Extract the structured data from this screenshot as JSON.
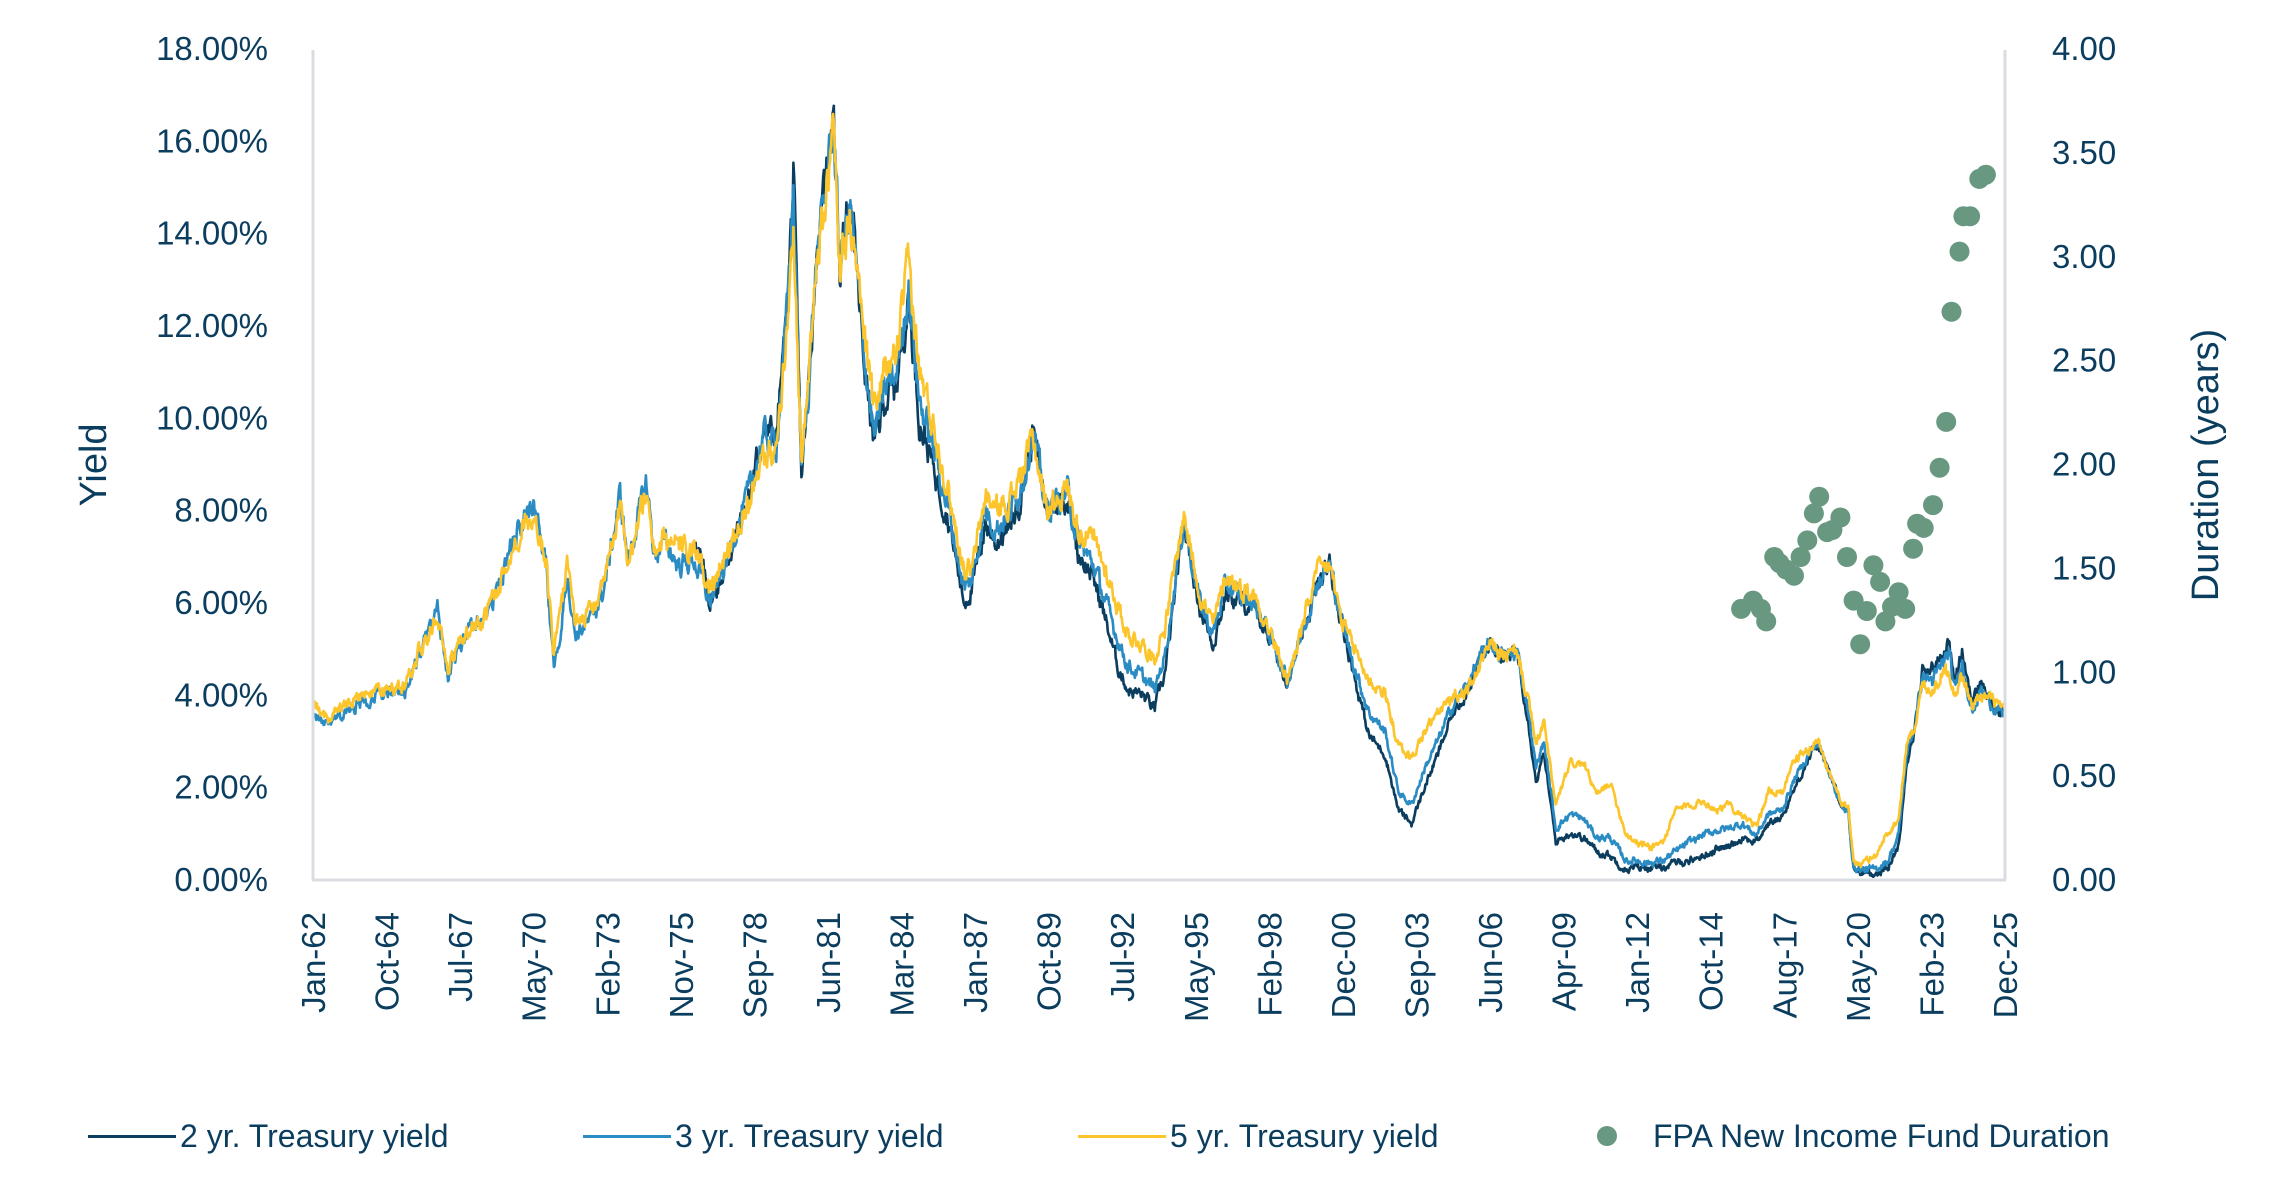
{
  "chart_data": {
    "type": "line",
    "title": "",
    "ylabel": "Yield",
    "y2label": "Duration (years)",
    "xlabel": "",
    "ylim": [
      0,
      18
    ],
    "y2lim": [
      0,
      4
    ],
    "xlim": [
      1962.0,
      2025.92
    ],
    "y_ticks": [
      "0.00%",
      "2.00%",
      "4.00%",
      "6.00%",
      "8.00%",
      "10.00%",
      "12.00%",
      "14.00%",
      "16.00%",
      "18.00%"
    ],
    "y_tick_values": [
      0,
      2,
      4,
      6,
      8,
      10,
      12,
      14,
      16,
      18
    ],
    "y2_ticks": [
      "0.00",
      "0.50",
      "1.00",
      "1.50",
      "2.00",
      "2.50",
      "3.00",
      "3.50",
      "4.00"
    ],
    "y2_tick_values": [
      0,
      0.5,
      1,
      1.5,
      2,
      2.5,
      3,
      3.5,
      4
    ],
    "x_ticks": [
      "Jan-62",
      "Oct-64",
      "Jul-67",
      "May-70",
      "Feb-73",
      "Nov-75",
      "Sep-78",
      "Jun-81",
      "Mar-84",
      "Jan-87",
      "Oct-89",
      "Jul-92",
      "May-95",
      "Feb-98",
      "Dec-00",
      "Sep-03",
      "Jun-06",
      "Apr-09",
      "Jan-12",
      "Oct-14",
      "Aug-17",
      "May-20",
      "Feb-23",
      "Dec-25"
    ],
    "grid": false,
    "legend_position": "bottom",
    "series": [
      {
        "name": "2 yr. Treasury yield",
        "color": "#0b3d5e",
        "axis": "left",
        "x": [
          1976.45,
          1977.0,
          1977.5,
          1978.0,
          1978.5,
          1979.0,
          1979.5,
          1979.9,
          1980.15,
          1980.45,
          1980.7,
          1981.0,
          1981.3,
          1981.65,
          1981.9,
          1982.3,
          1982.8,
          1983.2,
          1983.6,
          1984.0,
          1984.5,
          1984.9,
          1985.5,
          1986.0,
          1986.6,
          1986.9,
          1987.4,
          1987.8,
          1988.3,
          1988.8,
          1989.2,
          1989.7,
          1990.0,
          1990.5,
          1990.9,
          1991.5,
          1992.0,
          1992.4,
          1992.8,
          1993.3,
          1993.8,
          1994.2,
          1994.9,
          1995.5,
          1996.0,
          1996.5,
          1997.0,
          1997.5,
          1998.0,
          1998.8,
          1999.3,
          1999.9,
          2000.4,
          2000.9,
          2001.5,
          2001.9,
          2002.5,
          2003.0,
          2003.5,
          2004.0,
          2004.5,
          2005.0,
          2005.6,
          2006.0,
          2006.5,
          2007.0,
          2007.5,
          2007.9,
          2008.2,
          2008.5,
          2008.95,
          2009.5,
          2010.0,
          2010.5,
          2011.0,
          2011.6,
          2012.0,
          2012.5,
          2013.0,
          2013.5,
          2014.0,
          2014.5,
          2015.0,
          2015.5,
          2016.0,
          2016.5,
          2017.0,
          2017.5,
          2018.0,
          2018.5,
          2018.85,
          2019.3,
          2019.7,
          2020.0,
          2020.2,
          2020.5,
          2021.0,
          2021.5,
          2021.9,
          2022.2,
          2022.5,
          2022.8,
          2023.2,
          2023.5,
          2023.8,
          2024.0,
          2024.3,
          2024.7,
          2025.0,
          2025.4,
          2025.92
        ],
        "values": [
          7.4,
          6.0,
          6.6,
          7.5,
          8.3,
          9.7,
          9.6,
          12.2,
          15.2,
          8.7,
          10.5,
          13.4,
          14.7,
          16.9,
          13.2,
          14.8,
          11.3,
          9.4,
          10.4,
          10.6,
          12.6,
          10.0,
          8.8,
          7.8,
          6.0,
          6.3,
          7.7,
          7.3,
          7.6,
          8.4,
          9.7,
          8.0,
          8.1,
          8.3,
          7.1,
          6.5,
          5.5,
          4.6,
          4.1,
          4.0,
          3.7,
          4.5,
          7.7,
          5.9,
          5.1,
          6.2,
          6.0,
          5.9,
          5.4,
          4.3,
          5.1,
          6.3,
          6.8,
          5.5,
          4.0,
          3.1,
          2.7,
          1.5,
          1.2,
          2.0,
          2.7,
          3.5,
          4.1,
          4.6,
          5.1,
          4.8,
          4.9,
          3.5,
          2.1,
          2.7,
          0.8,
          1.0,
          0.9,
          0.6,
          0.5,
          0.2,
          0.25,
          0.25,
          0.25,
          0.35,
          0.4,
          0.5,
          0.65,
          0.7,
          0.9,
          0.8,
          1.2,
          1.35,
          2.0,
          2.6,
          2.9,
          2.3,
          1.6,
          1.5,
          0.2,
          0.15,
          0.12,
          0.25,
          0.7,
          2.5,
          3.2,
          4.5,
          4.6,
          4.8,
          5.1,
          4.3,
          4.9,
          3.8,
          4.3,
          3.8,
          3.5
        ]
      },
      {
        "name": "3 yr. Treasury yield",
        "color": "#2b8cc4",
        "axis": "left",
        "x": [
          1962.0,
          1962.3,
          1962.6,
          1963.0,
          1963.5,
          1964.0,
          1964.6,
          1965.0,
          1965.5,
          1966.0,
          1966.7,
          1967.1,
          1967.5,
          1968.0,
          1968.4,
          1969.0,
          1969.5,
          1970.0,
          1970.3,
          1970.8,
          1971.1,
          1971.6,
          1971.9,
          1972.5,
          1973.0,
          1973.6,
          1973.9,
          1974.6,
          1974.9,
          1975.3,
          1975.8,
          1976.4,
          1977.0,
          1977.5,
          1978.0,
          1978.5,
          1979.0,
          1979.5,
          1979.9,
          1980.15,
          1980.45,
          1980.7,
          1981.0,
          1981.3,
          1981.65,
          1981.9,
          1982.3,
          1982.8,
          1983.2,
          1983.6,
          1984.0,
          1984.5,
          1984.9,
          1985.5,
          1986.0,
          1986.6,
          1986.9,
          1987.4,
          1987.8,
          1988.3,
          1988.8,
          1989.2,
          1989.7,
          1990.0,
          1990.5,
          1990.9,
          1991.5,
          1992.0,
          1992.4,
          1992.8,
          1993.3,
          1993.8,
          1994.2,
          1994.9,
          1995.5,
          1996.0,
          1996.5,
          1997.0,
          1997.5,
          1998.0,
          1998.8,
          1999.3,
          1999.9,
          2000.4,
          2000.9,
          2001.5,
          2001.9,
          2002.5,
          2003.0,
          2003.5,
          2004.0,
          2004.5,
          2005.0,
          2005.6,
          2006.0,
          2006.5,
          2007.0,
          2007.5,
          2007.9,
          2008.2,
          2008.5,
          2008.95,
          2009.5,
          2010.0,
          2010.5,
          2011.0,
          2011.6,
          2012.0,
          2012.5,
          2013.0,
          2013.5,
          2014.0,
          2014.5,
          2015.0,
          2015.5,
          2016.0,
          2016.5,
          2017.0,
          2017.5,
          2018.0,
          2018.5,
          2018.85,
          2019.3,
          2019.7,
          2020.0,
          2020.2,
          2020.5,
          2021.0,
          2021.5,
          2021.9,
          2022.2,
          2022.5,
          2022.8,
          2023.2,
          2023.5,
          2023.8,
          2024.0,
          2024.3,
          2024.7,
          2025.0,
          2025.4,
          2025.92
        ],
        "values": [
          3.6,
          3.4,
          3.3,
          3.5,
          3.7,
          3.9,
          4.0,
          4.0,
          4.1,
          4.8,
          5.8,
          4.4,
          5.0,
          5.5,
          5.6,
          6.3,
          7.2,
          7.9,
          8.2,
          6.8,
          4.4,
          6.6,
          5.3,
          5.6,
          6.3,
          8.3,
          6.9,
          8.6,
          7.0,
          7.3,
          6.8,
          6.9,
          6.0,
          6.7,
          7.6,
          8.4,
          9.6,
          9.4,
          12.2,
          15.0,
          8.8,
          10.5,
          13.3,
          14.6,
          16.5,
          13.3,
          14.6,
          11.5,
          9.6,
          10.6,
          10.9,
          12.8,
          10.4,
          9.2,
          8.0,
          6.3,
          6.5,
          8.0,
          7.6,
          7.9,
          8.6,
          9.7,
          8.0,
          8.1,
          8.4,
          7.3,
          6.8,
          5.9,
          5.2,
          4.6,
          4.4,
          4.1,
          4.9,
          7.8,
          6.0,
          5.3,
          6.4,
          6.1,
          6.0,
          5.5,
          4.3,
          5.2,
          6.4,
          6.8,
          5.5,
          4.3,
          3.6,
          3.2,
          1.9,
          1.6,
          2.4,
          3.0,
          3.7,
          4.2,
          4.7,
          5.1,
          4.8,
          4.9,
          3.7,
          2.4,
          3.0,
          1.1,
          1.4,
          1.3,
          0.9,
          0.9,
          0.4,
          0.4,
          0.35,
          0.4,
          0.6,
          0.8,
          0.95,
          1.05,
          1.1,
          1.2,
          0.95,
          1.4,
          1.5,
          2.2,
          2.7,
          2.95,
          2.3,
          1.6,
          1.4,
          0.25,
          0.2,
          0.2,
          0.4,
          0.95,
          2.7,
          3.3,
          4.4,
          4.3,
          4.6,
          4.9,
          4.1,
          4.7,
          3.6,
          4.1,
          3.8,
          3.5
        ]
      },
      {
        "name": "5 yr. Treasury yield",
        "color": "#fcc52c",
        "axis": "left",
        "x": [
          1962.0,
          1962.3,
          1962.6,
          1963.0,
          1963.5,
          1964.0,
          1964.6,
          1965.0,
          1965.5,
          1966.0,
          1966.7,
          1967.1,
          1967.5,
          1968.0,
          1968.4,
          1969.0,
          1969.5,
          1970.0,
          1970.3,
          1970.8,
          1971.1,
          1971.6,
          1971.9,
          1972.5,
          1973.0,
          1973.6,
          1973.9,
          1974.6,
          1974.9,
          1975.3,
          1975.8,
          1976.4,
          1977.0,
          1977.5,
          1978.0,
          1978.5,
          1979.0,
          1979.5,
          1979.9,
          1980.15,
          1980.45,
          1980.7,
          1981.0,
          1981.3,
          1981.65,
          1981.9,
          1982.3,
          1982.8,
          1983.2,
          1983.6,
          1984.0,
          1984.5,
          1984.9,
          1985.5,
          1986.0,
          1986.6,
          1986.9,
          1987.4,
          1987.8,
          1988.3,
          1988.8,
          1989.2,
          1989.7,
          1990.0,
          1990.5,
          1990.9,
          1991.5,
          1992.0,
          1992.4,
          1992.8,
          1993.3,
          1993.8,
          1994.2,
          1994.9,
          1995.5,
          1996.0,
          1996.5,
          1997.0,
          1997.5,
          1998.0,
          1998.8,
          1999.3,
          1999.9,
          2000.4,
          2000.9,
          2001.5,
          2001.9,
          2002.5,
          2003.0,
          2003.5,
          2004.0,
          2004.5,
          2005.0,
          2005.6,
          2006.0,
          2006.5,
          2007.0,
          2007.5,
          2007.9,
          2008.2,
          2008.5,
          2008.95,
          2009.5,
          2010.0,
          2010.5,
          2011.0,
          2011.6,
          2012.0,
          2012.5,
          2013.0,
          2013.5,
          2014.0,
          2014.5,
          2015.0,
          2015.5,
          2016.0,
          2016.5,
          2017.0,
          2017.5,
          2018.0,
          2018.5,
          2018.85,
          2019.3,
          2019.7,
          2020.0,
          2020.2,
          2020.5,
          2021.0,
          2021.5,
          2021.9,
          2022.2,
          2022.5,
          2022.8,
          2023.2,
          2023.5,
          2023.8,
          2024.0,
          2024.3,
          2024.7,
          2025.0,
          2025.4,
          2025.92
        ],
        "values": [
          3.9,
          3.6,
          3.5,
          3.7,
          3.9,
          4.0,
          4.1,
          4.1,
          4.2,
          4.9,
          5.7,
          4.6,
          5.1,
          5.5,
          5.6,
          6.3,
          7.1,
          7.8,
          8.0,
          6.9,
          4.9,
          6.7,
          5.6,
          5.8,
          6.4,
          8.1,
          6.9,
          8.4,
          7.1,
          7.4,
          7.2,
          7.1,
          6.2,
          6.9,
          7.6,
          8.3,
          9.3,
          9.2,
          12.0,
          14.0,
          9.2,
          10.6,
          13.2,
          14.4,
          16.1,
          13.5,
          14.3,
          11.9,
          10.2,
          11.0,
          11.3,
          13.3,
          11.0,
          9.7,
          8.4,
          6.7,
          6.7,
          8.3,
          8.0,
          8.2,
          8.8,
          9.6,
          8.0,
          8.2,
          8.5,
          7.6,
          7.3,
          6.6,
          5.9,
          5.3,
          5.1,
          4.8,
          5.5,
          7.9,
          6.2,
          5.5,
          6.6,
          6.3,
          6.2,
          5.6,
          4.3,
          5.3,
          6.6,
          6.8,
          5.5,
          4.8,
          4.3,
          4.0,
          2.9,
          2.6,
          3.2,
          3.6,
          3.9,
          4.1,
          4.5,
          5.1,
          4.8,
          4.9,
          3.9,
          2.9,
          3.4,
          1.6,
          2.5,
          2.5,
          1.8,
          2.1,
          1.0,
          0.8,
          0.7,
          0.8,
          1.5,
          1.6,
          1.7,
          1.5,
          1.6,
          1.4,
          1.1,
          1.9,
          1.9,
          2.6,
          2.8,
          3.0,
          2.3,
          1.7,
          1.5,
          0.4,
          0.3,
          0.5,
          1.0,
          1.3,
          2.9,
          3.3,
          4.2,
          4.1,
          4.4,
          4.6,
          4.0,
          4.4,
          3.7,
          4.0,
          3.9,
          3.6
        ]
      },
      {
        "name": "FPA New Income Fund Duration",
        "color": "#689880",
        "axis": "right",
        "kind": "scatter",
        "x": [
          2015.95,
          2016.4,
          2016.7,
          2016.9,
          2017.2,
          2017.4,
          2017.65,
          2017.95,
          2018.2,
          2018.45,
          2018.7,
          2018.9,
          2019.2,
          2019.4,
          2019.7,
          2019.95,
          2020.2,
          2020.45,
          2020.7,
          2020.95,
          2021.2,
          2021.4,
          2021.65,
          2021.9,
          2022.15,
          2022.45,
          2022.6,
          2022.85,
          2023.2,
          2023.45,
          2023.7,
          2023.9,
          2024.2,
          2024.35,
          2024.6,
          2024.95,
          2025.2
        ],
        "values": [
          1.3,
          1.34,
          1.3,
          1.24,
          1.55,
          1.52,
          1.49,
          1.46,
          1.55,
          1.63,
          1.76,
          1.84,
          1.67,
          1.68,
          1.74,
          1.55,
          1.34,
          1.13,
          1.29,
          1.51,
          1.43,
          1.24,
          1.31,
          1.38,
          1.3,
          1.59,
          1.71,
          1.69,
          1.8,
          1.98,
          2.2,
          2.73,
          3.02,
          3.19,
          3.19,
          3.37,
          3.39
        ]
      }
    ]
  },
  "legend": {
    "items": [
      {
        "label": "2 yr. Treasury yield",
        "color": "#0b3d5e",
        "symbol": "line"
      },
      {
        "label": "3 yr. Treasury yield",
        "color": "#2b8cc4",
        "symbol": "line"
      },
      {
        "label": "5 yr. Treasury yield",
        "color": "#fcc52c",
        "symbol": "line"
      },
      {
        "label": "FPA New Income Fund Duration",
        "color": "#689880",
        "symbol": "dot"
      }
    ]
  },
  "colors": {
    "text": "#0b3d5e",
    "axis": "#d9dce1"
  }
}
